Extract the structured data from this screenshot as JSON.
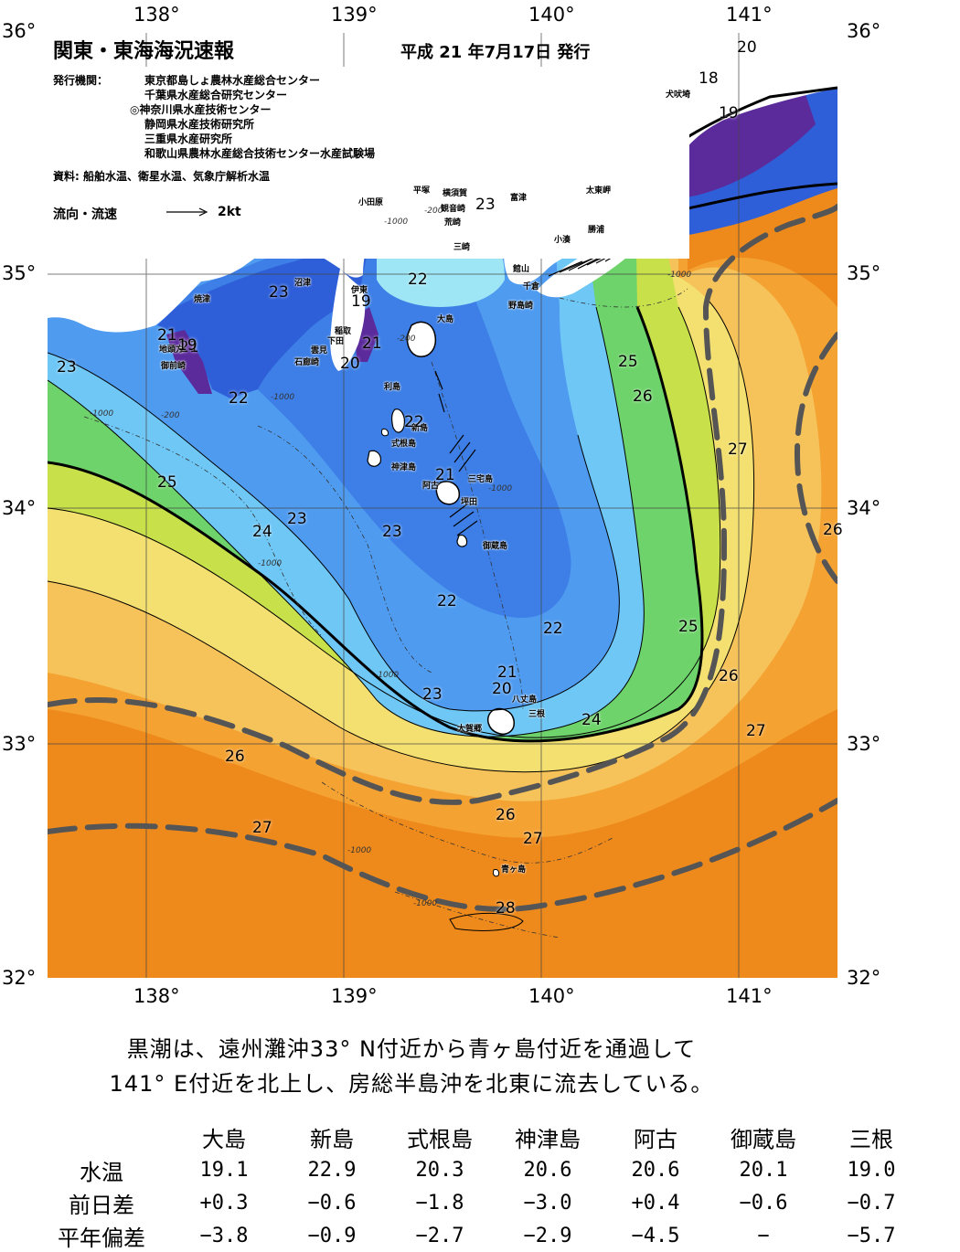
{
  "header": {
    "title": "関東・東海海況速報",
    "date": "平成 21 年7月17日 発行",
    "agency_label": "発行機関：",
    "agencies": [
      "東京都島しょ農林水産総合センター",
      "千葉県水産総合研究センター",
      "◎神奈川県水産技術センター",
      "静岡県水産技術研究所",
      "三重県水産研究所",
      "和歌山県農林水産総合技術センター水産試験場"
    ],
    "sources": "資料: 船舶水温、衛星水温、気象庁解析水温",
    "flow_label": "流向・流速",
    "flow_scale": "2kt"
  },
  "axes": {
    "lon_ticks": [
      "138°",
      "139°",
      "140°",
      "141°"
    ],
    "lat_ticks": [
      "36°",
      "35°",
      "34°",
      "33°",
      "32°"
    ]
  },
  "colors": {
    "very_cold": "#5b2b9c",
    "cold": "#2f5fd8",
    "cool": "#4f9bf0",
    "mild": "#6fc7f5",
    "lightcyan": "#9ee6f5",
    "green": "#6ed36a",
    "yellowgreen": "#c8e04a",
    "yellow": "#f4e070",
    "lightorange": "#f6c25a",
    "orange": "#f4a232",
    "deeporange": "#ee8a1c",
    "land": "#ffffff",
    "kuroshio_axis": "#555555"
  },
  "place_names": [
    "犬吠埼",
    "太東岬",
    "勝浦",
    "小湊",
    "富津",
    "館山",
    "千倉",
    "野島崎",
    "横須賀",
    "観音崎",
    "平塚",
    "小田原",
    "荒崎",
    "三崎",
    "伊東",
    "稲取",
    "下田",
    "雲見",
    "石廊崎",
    "沼津",
    "焼津",
    "御前崎",
    "地頭方",
    "大島",
    "利島",
    "新島",
    "式根島",
    "神津島",
    "三宅島",
    "阿古",
    "坪田",
    "御蔵島",
    "八丈島",
    "大賀郷",
    "三根",
    "青ヶ島"
  ],
  "isotherm_labels": [
    "20",
    "18",
    "19",
    "23",
    "22",
    "23",
    "19",
    "21",
    "20",
    "23",
    "22",
    "21",
    "25",
    "26",
    "22",
    "21",
    "23",
    "24",
    "23",
    "25",
    "27",
    "22",
    "22",
    "25",
    "21",
    "20",
    "26",
    "23",
    "24",
    "27",
    "26",
    "27",
    "26",
    "27",
    "28",
    "21",
    "19",
    "26"
  ],
  "depth_labels": [
    "-1000",
    "-200",
    "-1000",
    "-200",
    "-1000",
    "-200",
    "-1000",
    "-1000",
    "-1000",
    "-1000",
    "-1000",
    "-1000"
  ],
  "summary": [
    "黒潮は、遠州灘沖33° N付近から青ヶ島付近を通過して",
    "141° E付近を北上し、房総半島沖を北東に流去している。"
  ],
  "observations": {
    "stations": [
      "大島",
      "新島",
      "式根島",
      "神津島",
      "阿古",
      "御蔵島",
      "三根"
    ],
    "rows": [
      {
        "label": "水温",
        "values": [
          "19.1",
          "22.9",
          "20.3",
          "20.6",
          "20.6",
          "20.1",
          "19.0"
        ]
      },
      {
        "label": "前日差",
        "values": [
          "+0.3",
          "−0.6",
          "−1.8",
          "−3.0",
          "+0.4",
          "−0.6",
          "−0.7"
        ]
      },
      {
        "label": "平年偏差",
        "values": [
          "−3.8",
          "−0.9",
          "−2.7",
          "−2.9",
          "−4.5",
          "−",
          "−5.7"
        ]
      }
    ]
  }
}
